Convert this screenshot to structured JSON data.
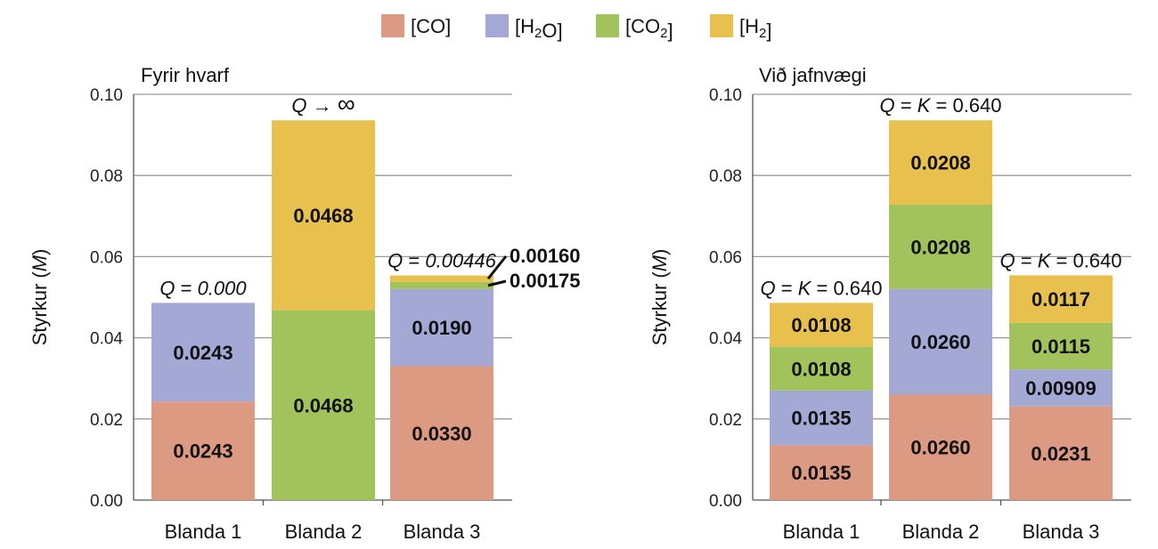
{
  "colors": {
    "CO": "#dd9a82",
    "H2O": "#a3a9d4",
    "CO2": "#a2c25c",
    "H2": "#e8c04e"
  },
  "legend": [
    {
      "key": "CO",
      "text": "[CO]"
    },
    {
      "key": "H2O",
      "text": "[H2O]"
    },
    {
      "key": "CO2",
      "text": "[CO2]"
    },
    {
      "key": "H2",
      "text": "[H2]"
    }
  ],
  "chart_data": [
    {
      "type": "bar",
      "stacked": true,
      "title": "Fyrir hvarf",
      "ylabel": "Styrkur (M)",
      "ylim": [
        0,
        0.1
      ],
      "yticks": [
        "0.00",
        "0.02",
        "0.04",
        "0.06",
        "0.08",
        "0.10"
      ],
      "grid": true,
      "categories": [
        "Blanda 1",
        "Blanda 2",
        "Blanda 3"
      ],
      "series": [
        {
          "name": "[CO]",
          "key": "CO",
          "values": [
            0.0243,
            0,
            0.033
          ],
          "labels": [
            "0.0243",
            "",
            "0.0330"
          ]
        },
        {
          "name": "[H2O]",
          "key": "H2O",
          "values": [
            0.0243,
            0,
            0.019
          ],
          "labels": [
            "0.0243",
            "",
            "0.0190"
          ]
        },
        {
          "name": "[CO2]",
          "key": "CO2",
          "values": [
            0,
            0.0468,
            0.00175
          ],
          "labels": [
            "",
            "0.0468",
            "0.00175"
          ]
        },
        {
          "name": "[H2]",
          "key": "H2",
          "values": [
            0,
            0.0468,
            0.0016
          ],
          "labels": [
            "",
            "0.0468",
            "0.00160"
          ]
        }
      ],
      "q_labels": [
        {
          "q": "Q",
          "rel": " = ",
          "val": "0.000"
        },
        {
          "q": "Q",
          "rel": " → ",
          "val": "∞"
        },
        {
          "q": "Q",
          "rel": " = ",
          "val": "0.00446"
        }
      ]
    },
    {
      "type": "bar",
      "stacked": true,
      "title": "Við jafnvægi",
      "ylabel": "Styrkur (M)",
      "ylim": [
        0,
        0.1
      ],
      "yticks": [
        "0.00",
        "0.02",
        "0.04",
        "0.06",
        "0.08",
        "0.10"
      ],
      "grid": true,
      "categories": [
        "Blanda 1",
        "Blanda 2",
        "Blanda 3"
      ],
      "series": [
        {
          "name": "[CO]",
          "key": "CO",
          "values": [
            0.0135,
            0.026,
            0.0231
          ],
          "labels": [
            "0.0135",
            "0.0260",
            "0.0231"
          ]
        },
        {
          "name": "[H2O]",
          "key": "H2O",
          "values": [
            0.0135,
            0.026,
            0.00909
          ],
          "labels": [
            "0.0135",
            "0.0260",
            "0.00909"
          ]
        },
        {
          "name": "[CO2]",
          "key": "CO2",
          "values": [
            0.0108,
            0.0208,
            0.0115
          ],
          "labels": [
            "0.0108",
            "0.0208",
            "0.0115"
          ]
        },
        {
          "name": "[H2]",
          "key": "H2",
          "values": [
            0.0108,
            0.0208,
            0.0117
          ],
          "labels": [
            "0.0108",
            "0.0208",
            "0.0117"
          ]
        }
      ],
      "q_labels": [
        {
          "q": "Q",
          "rel": " = ",
          "k": "K",
          "rel2": " = ",
          "val": "0.640"
        },
        {
          "q": "Q",
          "rel": " = ",
          "k": "K",
          "rel2": " = ",
          "val": "0.640"
        },
        {
          "q": "Q",
          "rel": " = ",
          "k": "K",
          "rel2": " = ",
          "val": "0.640"
        }
      ]
    }
  ]
}
